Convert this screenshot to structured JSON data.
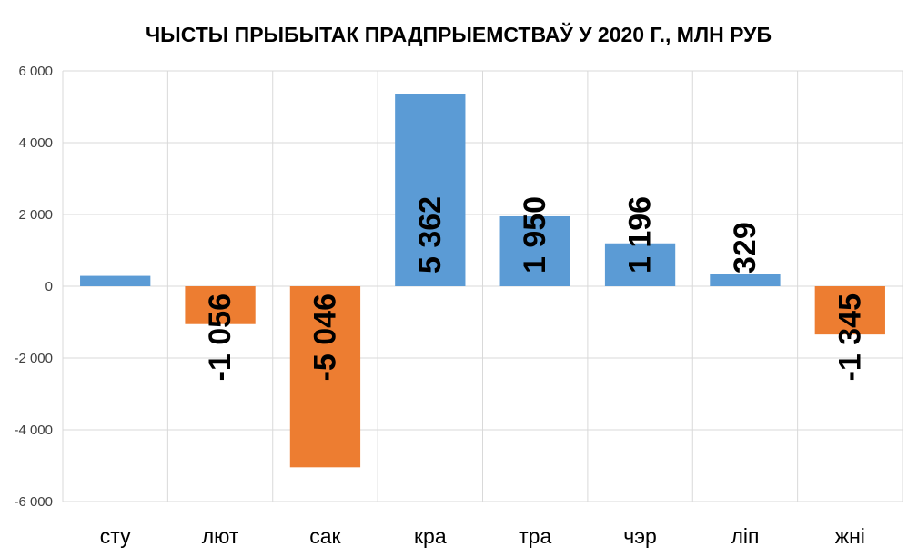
{
  "chart_data": {
    "type": "bar",
    "title": "ЧЫСТЫ ПРЫБЫТАК ПРАДПРЫЕМСТВАЎ У 2020 Г., МЛН РУБ",
    "xlabel": "",
    "ylabel": "",
    "categories": [
      "сту",
      "лют",
      "сак",
      "кра",
      "тра",
      "чэр",
      "ліп",
      "жні"
    ],
    "values": [
      289,
      -1056,
      -5046,
      5362,
      1950,
      1196,
      329,
      -1345
    ],
    "data_labels": [
      "",
      "-1 056",
      "-5 046",
      "5 362",
      "1 950",
      "1 196",
      "329",
      "-1 345"
    ],
    "ylim": [
      -6000,
      6000
    ],
    "yticks": [
      6000,
      4000,
      2000,
      0,
      -2000,
      -4000,
      -6000
    ],
    "ytick_labels": [
      "6 000",
      "4 000",
      "2 000",
      "0",
      "-2 000",
      "-4 000",
      "-6 000"
    ],
    "grid": true,
    "legend": "none",
    "colors": {
      "positive": "#5b9bd5",
      "negative": "#ed7d31",
      "grid": "#d9d9d9",
      "text": "#000000",
      "tick_text": "#404040"
    }
  }
}
